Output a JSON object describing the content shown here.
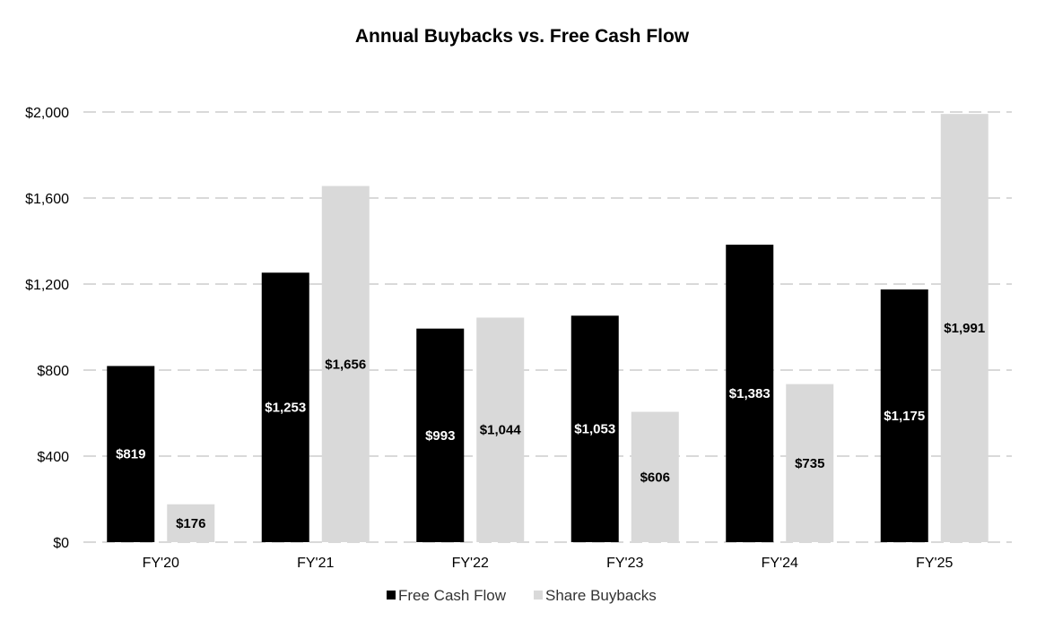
{
  "chart_data": {
    "type": "bar",
    "title": "Annual Buybacks vs. Free Cash Flow",
    "categories": [
      "FY'20",
      "FY'21",
      "FY'22",
      "FY'23",
      "FY'24",
      "FY'25"
    ],
    "series": [
      {
        "name": "Free Cash Flow",
        "color": "#000000",
        "label_color": "#ffffff",
        "values": [
          819,
          1253,
          993,
          1053,
          1383,
          1175
        ],
        "labels": [
          "$819",
          "$1,253",
          "$993",
          "$1,053",
          "$1,383",
          "$1,175"
        ]
      },
      {
        "name": "Share Buybacks",
        "color": "#d9d9d9",
        "label_color": "#000000",
        "values": [
          176,
          1656,
          1044,
          606,
          735,
          1991
        ],
        "labels": [
          "$176",
          "$1,656",
          "$1,044",
          "$606",
          "$735",
          "$1,991"
        ]
      }
    ],
    "ylim": [
      0,
      2000
    ],
    "yticks": [
      0,
      400,
      800,
      1200,
      1600,
      2000
    ],
    "ytick_labels": [
      "$0",
      "$400",
      "$800",
      "$1,200",
      "$1,600",
      "$2,000"
    ],
    "xlabel": "",
    "ylabel": "",
    "grid": true,
    "legend_position": "bottom"
  }
}
